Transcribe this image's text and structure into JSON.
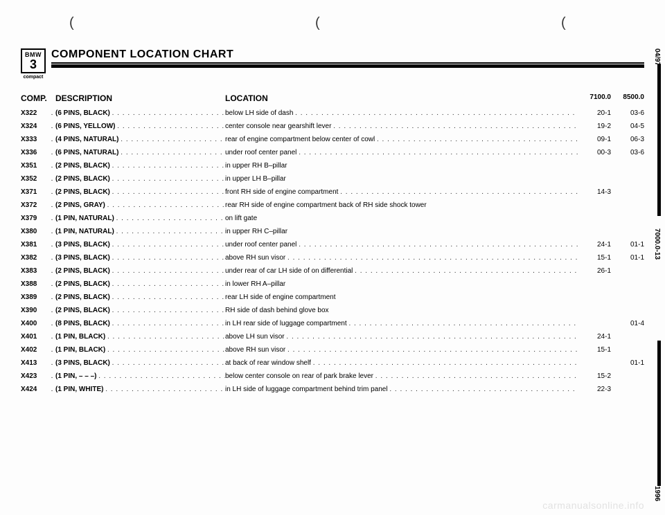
{
  "header": {
    "logo_top": "BMW",
    "logo_mid": "3",
    "logo_bot": "compact",
    "title": "COMPONENT LOCATION CHART"
  },
  "columns": {
    "comp": "COMP.",
    "desc": "DESCRIPTION",
    "loc": "LOCATION",
    "a": "7100.0",
    "b": "8500.0"
  },
  "side": {
    "date": "04/97",
    "ref": "7000.0-13",
    "year": "1996"
  },
  "watermark": "carmanualsonline.info",
  "parens": [
    "(",
    "(",
    "("
  ],
  "rows": [
    {
      "comp": "X322",
      "desc": "(6 PINS, BLACK)",
      "loc": "below LH side of dash",
      "a": "20-1",
      "b": "03-6",
      "locdots": true
    },
    {
      "comp": "X324",
      "desc": "(6 PINS, YELLOW)",
      "loc": "center console near gearshift lever",
      "a": "19-2",
      "b": "04-5",
      "locdots": true
    },
    {
      "comp": "X333",
      "desc": "(4 PINS, NATURAL)",
      "loc": "rear of engine compartment below center of cowl",
      "a": "09-1",
      "b": "06-3",
      "locdots": true
    },
    {
      "comp": "X336",
      "desc": "(6 PINS, NATURAL)",
      "loc": "under roof center panel",
      "a": "00-3",
      "b": "03-6",
      "locdots": true
    },
    {
      "comp": "X351",
      "desc": "(2 PINS, BLACK)",
      "loc": "in upper RH B–pillar",
      "a": "",
      "b": "",
      "locdots": false
    },
    {
      "comp": "X352",
      "desc": "(2 PINS, BLACK)",
      "loc": "in upper LH B–pillar",
      "a": "",
      "b": "",
      "locdots": false
    },
    {
      "comp": "X371",
      "desc": "(2 PINS, BLACK)",
      "loc": "front RH side of engine compartment",
      "a": "14-3",
      "b": "",
      "locdots": true
    },
    {
      "comp": "X372",
      "desc": "(2 PINS, GRAY)",
      "loc": "rear RH side of engine compartment back of RH side shock tower",
      "a": "",
      "b": "",
      "locdots": false
    },
    {
      "comp": "X379",
      "desc": "(1 PIN, NATURAL)",
      "loc": "on lift gate",
      "a": "",
      "b": "",
      "locdots": false
    },
    {
      "comp": "X380",
      "desc": "(1 PIN, NATURAL)",
      "loc": "in upper RH C–pillar",
      "a": "",
      "b": "",
      "locdots": false
    },
    {
      "comp": "X381",
      "desc": "(3 PINS, BLACK)",
      "loc": "under roof center panel",
      "a": "24-1",
      "b": "01-1",
      "locdots": true
    },
    {
      "comp": "X382",
      "desc": "(3 PINS, BLACK)",
      "loc": "above RH sun visor",
      "a": "15-1",
      "b": "01-1",
      "locdots": true
    },
    {
      "comp": "X383",
      "desc": "(2 PINS, BLACK)",
      "loc": "under rear of car LH side of on differential",
      "a": "26-1",
      "b": "",
      "locdots": true
    },
    {
      "comp": "X388",
      "desc": "(2 PINS, BLACK)",
      "loc": "in lower RH A–pillar",
      "a": "",
      "b": "",
      "locdots": false
    },
    {
      "comp": "X389",
      "desc": "(2 PINS, BLACK)",
      "loc": "rear LH side of engine compartment",
      "a": "",
      "b": "",
      "locdots": false
    },
    {
      "comp": "X390",
      "desc": "(2 PINS, BLACK)",
      "loc": "RH side of dash behind glove box",
      "a": "",
      "b": "",
      "locdots": false
    },
    {
      "comp": "X400",
      "desc": "(8 PINS, BLACK)",
      "loc": "in LH rear side of luggage compartment",
      "a": "",
      "b": "01-4",
      "locdots": true
    },
    {
      "comp": "X401",
      "desc": "(1 PIN, BLACK)",
      "loc": "above LH sun visor",
      "a": "24-1",
      "b": "",
      "locdots": true
    },
    {
      "comp": "X402",
      "desc": "(1 PIN, BLACK)",
      "loc": "above RH sun visor",
      "a": "15-1",
      "b": "",
      "locdots": true
    },
    {
      "comp": "X413",
      "desc": "(3 PINS, BLACK)",
      "loc": "at back of rear window shelf",
      "a": "",
      "b": "01-1",
      "locdots": true
    },
    {
      "comp": "X423",
      "desc": "(1 PIN, – – –)",
      "loc": "below center console on rear of park brake lever",
      "a": "15-2",
      "b": "",
      "locdots": true
    },
    {
      "comp": "X424",
      "desc": "(1 PIN, WHITE)",
      "loc": "in LH side of luggage compartment behind trim panel",
      "a": "22-3",
      "b": "",
      "locdots": true
    }
  ]
}
